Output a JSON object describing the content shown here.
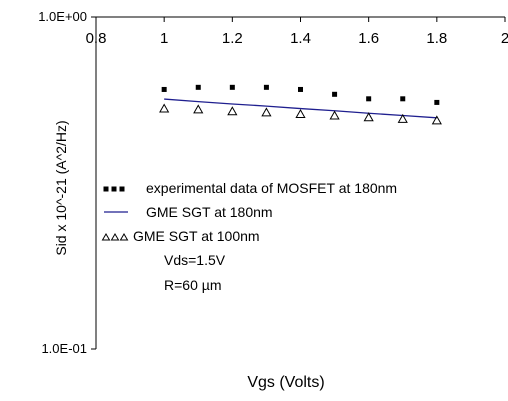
{
  "chart_data": {
    "type": "scatter",
    "xlabel": "Vgs (Volts)",
    "ylabel": "Sid x 10^-21 (A^2/Hz)",
    "xlim": [
      0.8,
      2.0
    ],
    "ylim": [
      0.1,
      1.0
    ],
    "y_scale": "log",
    "x_ticks": [
      {
        "value": 0.8,
        "label": "0.8"
      },
      {
        "value": 1.0,
        "label": "1"
      },
      {
        "value": 1.2,
        "label": "1.2"
      },
      {
        "value": 1.4,
        "label": "1.4"
      },
      {
        "value": 1.6,
        "label": "1.6"
      },
      {
        "value": 1.8,
        "label": "1.8"
      },
      {
        "value": 2.0,
        "label": "2"
      }
    ],
    "y_ticks": [
      {
        "value": 1.0,
        "label": "1.0E+00"
      },
      {
        "value": 0.1,
        "label": "1.0E-01"
      }
    ],
    "x_axis_position": "top",
    "grid": false,
    "legend_position": "center-left",
    "legend": [
      {
        "marker": "square",
        "label": "experimental data of MOSFET at 180nm"
      },
      {
        "marker": "line",
        "label": "GME SGT at 180nm"
      },
      {
        "marker": "triangle",
        "label": "GME SGT at 100nm"
      }
    ],
    "annotations": [
      "Vds=1.5V",
      "R=60 µm"
    ],
    "series": [
      {
        "marker": "square",
        "color": "#000000",
        "x": [
          1.0,
          1.1,
          1.2,
          1.3,
          1.4,
          1.5,
          1.6,
          1.7,
          1.8
        ],
        "y": [
          0.605,
          0.614,
          0.614,
          0.614,
          0.605,
          0.585,
          0.567,
          0.567,
          0.553
        ]
      },
      {
        "marker": "line",
        "color": "#1f1f8f",
        "x": [
          1.0,
          1.1,
          1.2,
          1.3,
          1.4,
          1.5,
          1.6,
          1.7,
          1.8
        ],
        "y": [
          0.566,
          0.556,
          0.547,
          0.539,
          0.53,
          0.522,
          0.513,
          0.505,
          0.497
        ]
      },
      {
        "marker": "triangle",
        "color": "#000000",
        "x": [
          1.0,
          1.1,
          1.2,
          1.3,
          1.4,
          1.5,
          1.6,
          1.7,
          1.8
        ],
        "y": [
          0.531,
          0.528,
          0.521,
          0.517,
          0.511,
          0.506,
          0.5,
          0.494,
          0.489
        ]
      }
    ]
  }
}
